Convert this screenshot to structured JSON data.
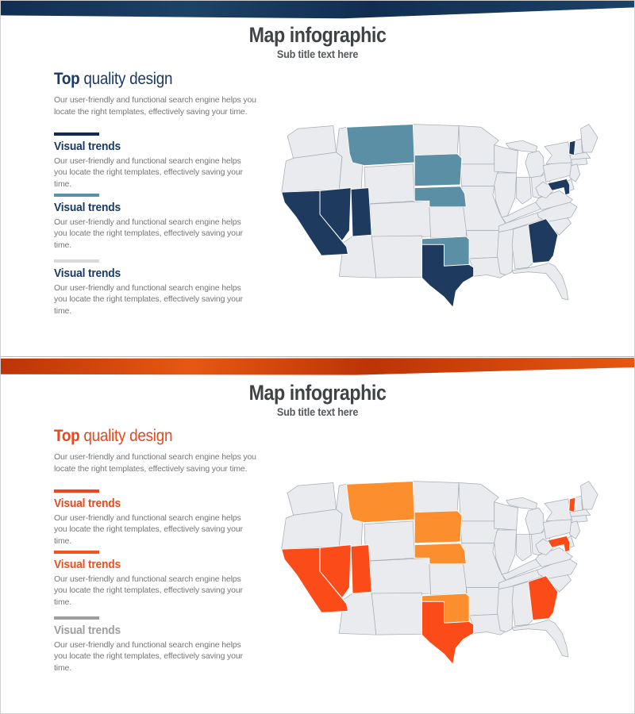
{
  "slides": [
    {
      "title": "Map infographic",
      "subtitle": "Sub title text here",
      "banner": {
        "dark": "#112e52",
        "light": "#1d4268"
      },
      "heading": {
        "bold": "Top",
        "rest": " quality design",
        "color": "#1b3a66"
      },
      "intro": "Our user-friendly and functional search engine helps you locate the right templates, effectively saving your time.",
      "sections": [
        {
          "label": "Visual trends",
          "label_color": "#1b3a66",
          "line_color": "#13294e",
          "body": "Our user-friendly and functional search engine helps you locate the right templates, effectively saving your time."
        },
        {
          "label": "Visual trends",
          "label_color": "#1b3a66",
          "line_color": "#5792a6",
          "body": "Our user-friendly and functional search engine helps you locate the right templates, effectively saving your time."
        },
        {
          "label": "Visual trends",
          "label_color": "#1b3a66",
          "line_color": "#d9d9d9",
          "body": "Our user-friendly and functional search engine helps you locate the right templates, effectively saving your time."
        }
      ],
      "map": {
        "base_color": "#e9ebee",
        "stroke_color": "#a6adb6",
        "highlight_stroke": "#ffffff",
        "primary_color": "#1e3a5f",
        "secondary_color": "#5b8fa5",
        "primary_states": [
          "CA",
          "NV",
          "UT",
          "TX",
          "GA",
          "VT",
          "MD"
        ],
        "secondary_states": [
          "MT",
          "SD",
          "NE",
          "OK"
        ]
      }
    },
    {
      "title": "Map infographic",
      "subtitle": "Sub title text here",
      "banner": {
        "dark": "#bc3407",
        "light": "#e65812"
      },
      "heading": {
        "bold": "Top",
        "rest": " quality design",
        "color": "#e8481d"
      },
      "intro": "Our user-friendly and functional search engine helps you locate the right templates, effectively saving your time.",
      "sections": [
        {
          "label": "Visual trends",
          "label_color": "#e8481d",
          "line_color": "#e8481d",
          "body": "Our user-friendly and functional search engine helps you locate the right templates, effectively saving your time."
        },
        {
          "label": "Visual trends",
          "label_color": "#ef4f1d",
          "line_color": "#f2551f",
          "body": "Our user-friendly and functional search engine helps you locate the right templates, effectively saving your time."
        },
        {
          "label": "Visual trends",
          "label_color": "#9e9e9e",
          "line_color": "#9e9e9e",
          "body": "Our user-friendly and functional search engine helps you locate the right templates, effectively saving your time."
        }
      ],
      "map": {
        "base_color": "#e9ebee",
        "stroke_color": "#a6adb6",
        "highlight_stroke": "#ffffff",
        "primary_color": "#fb4b19",
        "secondary_color": "#fd8e2e",
        "primary_states": [
          "CA",
          "NV",
          "UT",
          "TX",
          "GA",
          "VT",
          "MD"
        ],
        "secondary_states": [
          "MT",
          "SD",
          "NE",
          "OK"
        ]
      }
    }
  ]
}
